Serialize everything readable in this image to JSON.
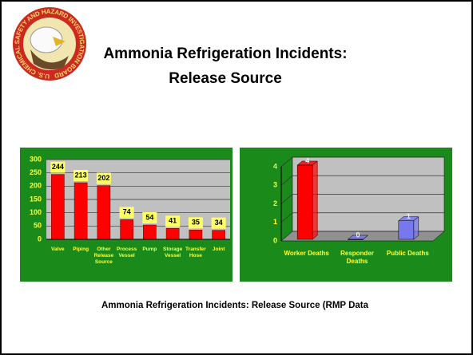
{
  "logo": {
    "text": "U.S. CHEMICAL SAFETY AND HAZARD INVESTIGATION BOARD"
  },
  "title": [
    "Ammonia Refrigeration Incidents:",
    "Release Source"
  ],
  "caption": "Ammonia Refrigeration Incidents: Release Source (RMP Data",
  "chart_data": [
    {
      "type": "bar",
      "categories": [
        "Valve",
        "Piping",
        "Other Release Source",
        "Process Vessel",
        "Pump",
        "Storage Vessel",
        "Transfer Hose",
        "Joint"
      ],
      "values": [
        244,
        213,
        202,
        74,
        54,
        41,
        35,
        34
      ],
      "color": "#ff0000",
      "ylim": [
        0,
        300
      ],
      "yticks": [
        0,
        50,
        100,
        150,
        200,
        250,
        300
      ],
      "grid": true
    },
    {
      "type": "bar3d",
      "categories": [
        "Worker Deaths",
        "Responder Deaths",
        "Public Deaths"
      ],
      "values": [
        4,
        0,
        1
      ],
      "colors": [
        "#ff0000",
        "#7777ee",
        "#7777ee"
      ],
      "ylim": [
        0,
        4
      ],
      "yticks": [
        0,
        1,
        2,
        3,
        4
      ],
      "grid": true
    }
  ]
}
